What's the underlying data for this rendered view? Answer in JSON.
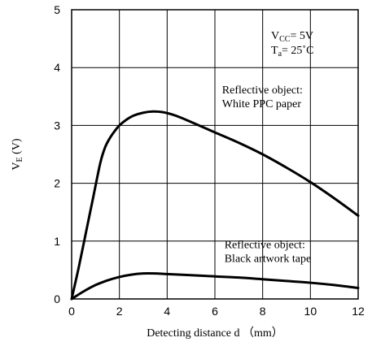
{
  "chart_data": {
    "type": "line",
    "title": "",
    "xlabel": "Detecting distance d （mm）",
    "ylabel": {
      "main": "V",
      "sub": "E",
      "unit": " (V)"
    },
    "xlim": [
      0,
      12
    ],
    "ylim": [
      0,
      5
    ],
    "x_ticks": [
      0,
      2,
      4,
      6,
      8,
      10,
      12
    ],
    "y_ticks": [
      0,
      1,
      2,
      3,
      4,
      5
    ],
    "grid": true,
    "legend": "none",
    "conditions": {
      "vcc": {
        "main": "V",
        "sub": "CC",
        "value": "= 5V"
      },
      "ta": {
        "main": "T",
        "sub": "a",
        "value": "= 25˚C"
      }
    },
    "series": [
      {
        "label_lines": [
          "Reflective object:",
          "White PPC paper"
        ],
        "label_anchor": [
          6.3,
          3.55
        ],
        "x": [
          0,
          0.3,
          0.6,
          0.9,
          1.2,
          1.4,
          1.6,
          1.8,
          2.0,
          2.3,
          2.6,
          3.0,
          3.4,
          3.8,
          4.2,
          4.6,
          5.0,
          6.0,
          7.0,
          8.0,
          9.0,
          10.0,
          11.0,
          12.0
        ],
        "y": [
          0,
          0.55,
          1.15,
          1.75,
          2.35,
          2.62,
          2.78,
          2.9,
          3.0,
          3.1,
          3.17,
          3.22,
          3.24,
          3.23,
          3.19,
          3.13,
          3.06,
          2.88,
          2.7,
          2.5,
          2.27,
          2.02,
          1.74,
          1.44
        ]
      },
      {
        "label_lines": [
          "Reflective object:",
          "Black artwork tape"
        ],
        "label_anchor": [
          6.4,
          0.88
        ],
        "x": [
          0,
          0.5,
          1.0,
          1.5,
          2.0,
          2.5,
          3.0,
          3.5,
          4.0,
          5.0,
          6.0,
          7.0,
          8.0,
          9.0,
          10.0,
          11.0,
          12.0
        ],
        "y": [
          0,
          0.13,
          0.24,
          0.32,
          0.38,
          0.42,
          0.44,
          0.44,
          0.43,
          0.41,
          0.39,
          0.37,
          0.34,
          0.31,
          0.28,
          0.24,
          0.19
        ]
      }
    ]
  }
}
